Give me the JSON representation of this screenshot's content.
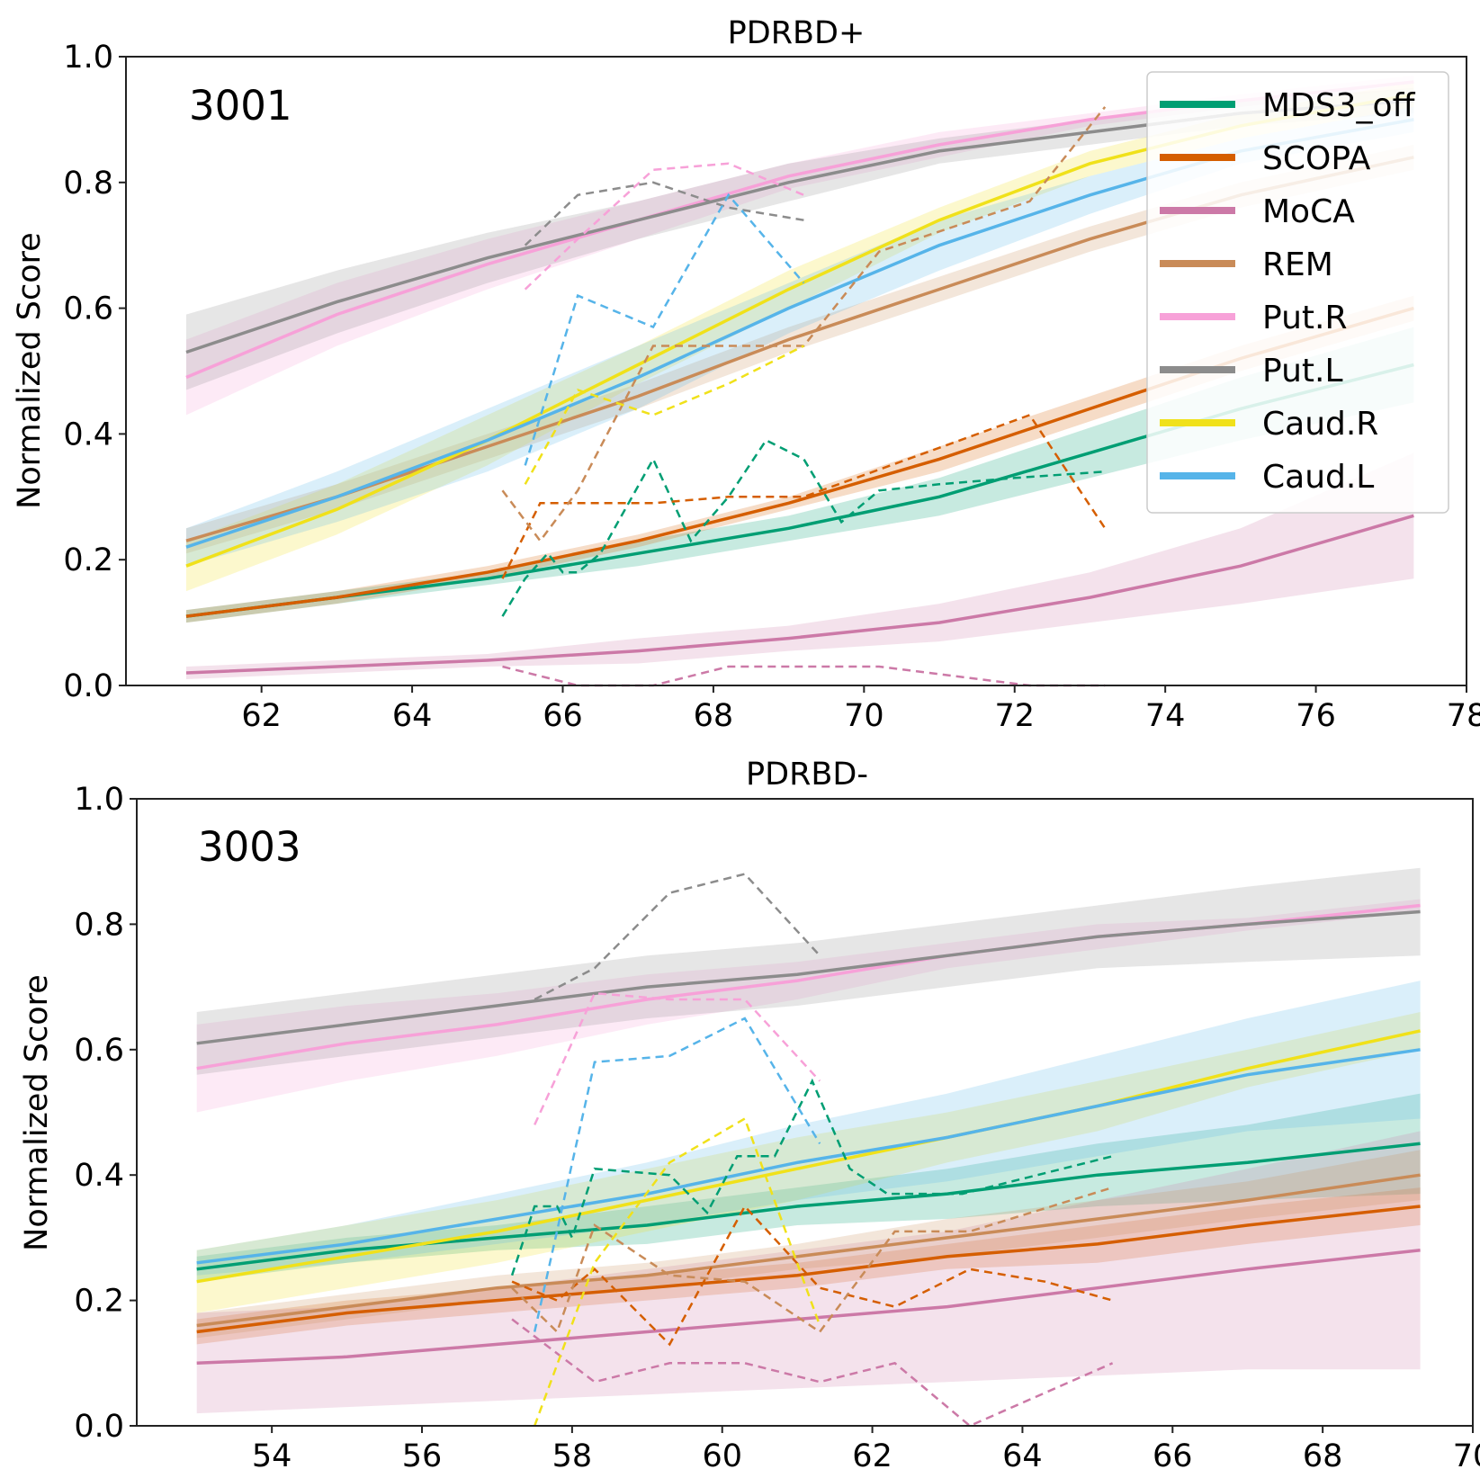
{
  "chart_data": [
    {
      "type": "line",
      "title": "PDRBD+",
      "annotation": "3001",
      "xlabel": "",
      "ylabel": "Normalized Score",
      "xlim": [
        60.2,
        78.0
      ],
      "ylim": [
        0,
        1
      ],
      "xticks": [
        62,
        64,
        66,
        68,
        70,
        72,
        74,
        76,
        78
      ],
      "yticks": [
        "0.0",
        "0.2",
        "0.4",
        "0.6",
        "0.8",
        "1.0"
      ],
      "legend": "top-right",
      "fit_x": [
        61,
        63,
        65,
        67,
        69,
        71,
        73,
        75,
        77.3
      ],
      "series": [
        {
          "name": "MDS3_off",
          "color": "#009e73",
          "fit": [
            0.11,
            0.14,
            0.17,
            0.21,
            0.25,
            0.3,
            0.37,
            0.44,
            0.51
          ],
          "band_width": [
            0.01,
            0.01,
            0.01,
            0.02,
            0.02,
            0.03,
            0.04,
            0.05,
            0.06
          ],
          "obs_x": [
            65.2,
            65.5,
            65.8,
            66.0,
            66.2,
            66.5,
            67.2,
            67.7,
            68.2,
            68.7,
            69.2,
            69.7,
            70.2,
            71.0,
            72.0,
            73.2
          ],
          "obs_y": [
            0.11,
            0.17,
            0.21,
            0.18,
            0.18,
            0.21,
            0.36,
            0.23,
            0.3,
            0.39,
            0.36,
            0.26,
            0.31,
            0.32,
            0.33,
            0.34
          ]
        },
        {
          "name": "SCOPA",
          "color": "#d55e00",
          "fit": [
            0.11,
            0.14,
            0.18,
            0.23,
            0.29,
            0.36,
            0.44,
            0.52,
            0.6
          ],
          "band_width": [
            0.01,
            0.01,
            0.01,
            0.01,
            0.01,
            0.02,
            0.02,
            0.02,
            0.02
          ],
          "obs_x": [
            65.2,
            65.7,
            67.2,
            68.2,
            69.2,
            72.2,
            73.2
          ],
          "obs_y": [
            0.17,
            0.29,
            0.29,
            0.3,
            0.3,
            0.43,
            0.25
          ]
        },
        {
          "name": "MoCA",
          "color": "#cc79a7",
          "fit": [
            0.02,
            0.03,
            0.04,
            0.055,
            0.075,
            0.1,
            0.14,
            0.19,
            0.27
          ],
          "band_width": [
            0.01,
            0.01,
            0.01,
            0.02,
            0.02,
            0.03,
            0.04,
            0.06,
            0.1
          ],
          "obs_x": [
            65.2,
            66.2,
            67.2,
            68.2,
            69.2,
            70.2,
            72.2,
            73.2
          ],
          "obs_y": [
            0.03,
            0.0,
            0.0,
            0.03,
            0.03,
            0.03,
            0.0,
            0.0
          ]
        },
        {
          "name": "REM",
          "color": "#c98b58",
          "fit": [
            0.23,
            0.3,
            0.38,
            0.46,
            0.55,
            0.63,
            0.71,
            0.78,
            0.84
          ],
          "band_width": [
            0.02,
            0.02,
            0.02,
            0.02,
            0.02,
            0.02,
            0.02,
            0.02,
            0.02
          ],
          "obs_x": [
            65.2,
            65.7,
            66.2,
            67.2,
            68.2,
            69.2,
            70.2,
            72.2,
            73.2
          ],
          "obs_y": [
            0.31,
            0.23,
            0.31,
            0.54,
            0.54,
            0.54,
            0.69,
            0.77,
            0.92
          ]
        },
        {
          "name": "Put.R",
          "color": "#f7a1d8",
          "fit": [
            0.49,
            0.59,
            0.67,
            0.74,
            0.81,
            0.86,
            0.9,
            0.93,
            0.96
          ],
          "band_width": [
            0.06,
            0.05,
            0.04,
            0.03,
            0.02,
            0.02,
            0.01,
            0.01,
            0.01
          ],
          "obs_x": [
            65.5,
            66.2,
            67.2,
            68.2,
            69.2
          ],
          "obs_y": [
            0.63,
            0.71,
            0.82,
            0.83,
            0.78
          ]
        },
        {
          "name": "Put.L",
          "color": "#8c8c8c",
          "fit": [
            0.53,
            0.61,
            0.68,
            0.74,
            0.8,
            0.85,
            0.88,
            0.91,
            0.93
          ],
          "band_width": [
            0.06,
            0.05,
            0.04,
            0.03,
            0.03,
            0.02,
            0.02,
            0.02,
            0.02
          ],
          "obs_x": [
            65.5,
            66.2,
            67.2,
            68.2,
            69.2
          ],
          "obs_y": [
            0.7,
            0.78,
            0.8,
            0.76,
            0.74
          ]
        },
        {
          "name": "Caud.R",
          "color": "#f0e11a",
          "fit": [
            0.19,
            0.28,
            0.39,
            0.51,
            0.63,
            0.74,
            0.83,
            0.89,
            0.94
          ],
          "band_width": [
            0.04,
            0.04,
            0.04,
            0.03,
            0.03,
            0.02,
            0.02,
            0.02,
            0.02
          ],
          "obs_x": [
            65.5,
            66.2,
            67.2,
            68.2,
            69.2
          ],
          "obs_y": [
            0.32,
            0.47,
            0.43,
            0.48,
            0.54
          ]
        },
        {
          "name": "Caud.L",
          "color": "#56b4e9",
          "fit": [
            0.22,
            0.3,
            0.39,
            0.49,
            0.6,
            0.7,
            0.78,
            0.85,
            0.9
          ],
          "band_width": [
            0.03,
            0.04,
            0.05,
            0.05,
            0.04,
            0.04,
            0.03,
            0.02,
            0.02
          ],
          "obs_x": [
            65.5,
            66.2,
            67.2,
            68.2,
            69.2
          ],
          "obs_y": [
            0.35,
            0.62,
            0.57,
            0.78,
            0.64
          ]
        }
      ]
    },
    {
      "type": "line",
      "title": "PDRBD-",
      "annotation": "3003",
      "xlabel": "",
      "ylabel": "Normalized Score",
      "xlim": [
        52.2,
        70.0
      ],
      "ylim": [
        0,
        1
      ],
      "xticks": [
        54,
        56,
        58,
        60,
        62,
        64,
        66,
        68,
        70
      ],
      "yticks": [
        "0.0",
        "0.2",
        "0.4",
        "0.6",
        "0.8",
        "1.0"
      ],
      "fit_x": [
        53,
        55,
        57,
        59,
        61,
        63,
        65,
        67,
        69.3
      ],
      "series": [
        {
          "name": "MDS3_off",
          "color": "#009e73",
          "fit": [
            0.25,
            0.28,
            0.3,
            0.32,
            0.35,
            0.37,
            0.4,
            0.42,
            0.45
          ],
          "band_width": [
            0.02,
            0.02,
            0.02,
            0.03,
            0.03,
            0.04,
            0.05,
            0.06,
            0.08
          ],
          "obs_x": [
            57.2,
            57.5,
            57.8,
            58.0,
            58.3,
            59.3,
            59.8,
            60.2,
            60.7,
            61.2,
            61.7,
            62.2,
            63.2,
            64.2,
            65.2
          ],
          "obs_y": [
            0.24,
            0.35,
            0.35,
            0.3,
            0.41,
            0.4,
            0.34,
            0.43,
            0.43,
            0.55,
            0.41,
            0.37,
            0.37,
            0.4,
            0.43
          ]
        },
        {
          "name": "SCOPA",
          "color": "#d55e00",
          "fit": [
            0.15,
            0.18,
            0.2,
            0.22,
            0.24,
            0.27,
            0.29,
            0.32,
            0.35
          ],
          "band_width": [
            0.02,
            0.02,
            0.02,
            0.02,
            0.02,
            0.02,
            0.03,
            0.03,
            0.03
          ],
          "obs_x": [
            57.2,
            57.8,
            58.3,
            59.3,
            60.3,
            61.3,
            62.3,
            63.3,
            64.3,
            65.2
          ],
          "obs_y": [
            0.23,
            0.2,
            0.25,
            0.13,
            0.35,
            0.22,
            0.19,
            0.25,
            0.23,
            0.2
          ]
        },
        {
          "name": "MoCA",
          "color": "#cc79a7",
          "fit": [
            0.1,
            0.11,
            0.13,
            0.15,
            0.17,
            0.19,
            0.22,
            0.25,
            0.28
          ],
          "band_width": [
            0.08,
            0.08,
            0.09,
            0.1,
            0.11,
            0.12,
            0.14,
            0.16,
            0.19
          ],
          "obs_x": [
            57.2,
            58.3,
            59.3,
            60.3,
            61.3,
            62.3,
            63.3,
            65.2
          ],
          "obs_y": [
            0.17,
            0.07,
            0.1,
            0.1,
            0.07,
            0.1,
            0.0,
            0.1
          ]
        },
        {
          "name": "REM",
          "color": "#c98b58",
          "fit": [
            0.16,
            0.19,
            0.22,
            0.24,
            0.27,
            0.3,
            0.33,
            0.36,
            0.4
          ],
          "band_width": [
            0.02,
            0.02,
            0.02,
            0.02,
            0.02,
            0.03,
            0.03,
            0.03,
            0.04
          ],
          "obs_x": [
            57.2,
            57.8,
            58.3,
            59.3,
            60.3,
            61.3,
            62.3,
            63.3,
            65.2
          ],
          "obs_y": [
            0.22,
            0.15,
            0.32,
            0.24,
            0.23,
            0.15,
            0.31,
            0.31,
            0.38
          ]
        },
        {
          "name": "Put.R",
          "color": "#f7a1d8",
          "fit": [
            0.57,
            0.61,
            0.64,
            0.68,
            0.71,
            0.75,
            0.78,
            0.8,
            0.83
          ],
          "band_width": [
            0.07,
            0.06,
            0.05,
            0.04,
            0.03,
            0.02,
            0.02,
            0.01,
            0.01
          ],
          "obs_x": [
            57.5,
            58.3,
            59.3,
            60.3,
            61.3
          ],
          "obs_y": [
            0.48,
            0.69,
            0.68,
            0.68,
            0.55
          ]
        },
        {
          "name": "Put.L",
          "color": "#8c8c8c",
          "fit": [
            0.61,
            0.64,
            0.67,
            0.7,
            0.72,
            0.75,
            0.78,
            0.8,
            0.82
          ],
          "band_width": [
            0.05,
            0.05,
            0.05,
            0.05,
            0.05,
            0.05,
            0.05,
            0.06,
            0.07
          ],
          "obs_x": [
            57.5,
            58.3,
            59.3,
            60.3,
            61.3
          ],
          "obs_y": [
            0.68,
            0.73,
            0.85,
            0.88,
            0.75
          ]
        },
        {
          "name": "Caud.R",
          "color": "#f0e11a",
          "fit": [
            0.23,
            0.27,
            0.31,
            0.36,
            0.41,
            0.46,
            0.51,
            0.57,
            0.63
          ],
          "band_width": [
            0.05,
            0.05,
            0.05,
            0.05,
            0.05,
            0.04,
            0.04,
            0.03,
            0.03
          ],
          "obs_x": [
            57.5,
            58.3,
            59.3,
            60.3,
            61.3
          ],
          "obs_y": [
            0.0,
            0.26,
            0.42,
            0.49,
            0.16
          ]
        },
        {
          "name": "Caud.L",
          "color": "#56b4e9",
          "fit": [
            0.26,
            0.29,
            0.33,
            0.37,
            0.42,
            0.46,
            0.51,
            0.56,
            0.6
          ],
          "band_width": [
            0.02,
            0.03,
            0.04,
            0.05,
            0.06,
            0.07,
            0.08,
            0.09,
            0.11
          ],
          "obs_x": [
            57.5,
            58.3,
            59.3,
            60.3,
            61.3
          ],
          "obs_y": [
            0.15,
            0.58,
            0.59,
            0.65,
            0.45
          ]
        }
      ]
    }
  ]
}
